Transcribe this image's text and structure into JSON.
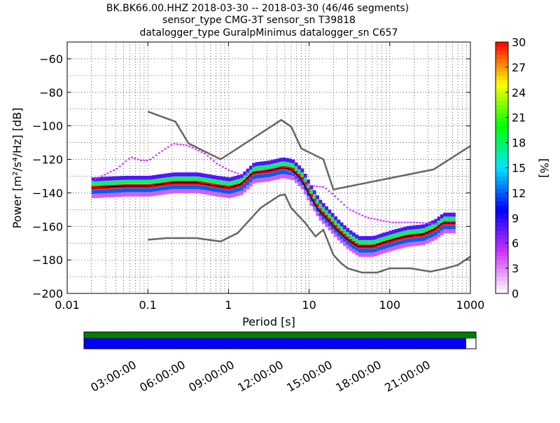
{
  "chart_data": {
    "type": "heatmap",
    "title_lines": [
      "BK.BK66.00.HHZ   2018-03-30 -- 2018-03-30  (46/46 segments)",
      "sensor_type CMG-3T sensor_sn T39818",
      "datalogger_type GuralpMinimus datalogger_sn C657"
    ],
    "xlabel": "Period [s]",
    "ylabel": "Power [m²/s⁴/Hz] [dB]",
    "x_scale": "log",
    "xlim": [
      0.01,
      1000
    ],
    "ylim": [
      -200,
      -50
    ],
    "x_ticks": [
      {
        "value": 0.01,
        "label": "0.01"
      },
      {
        "value": 0.1,
        "label": "0.1"
      },
      {
        "value": 1,
        "label": "1"
      },
      {
        "value": 10,
        "label": "10"
      },
      {
        "value": 100,
        "label": "100"
      },
      {
        "value": 1000,
        "label": "1000"
      }
    ],
    "y_ticks": [
      {
        "value": -200,
        "label": "−200"
      },
      {
        "value": -180,
        "label": "−180"
      },
      {
        "value": -160,
        "label": "−160"
      },
      {
        "value": -140,
        "label": "−140"
      },
      {
        "value": -120,
        "label": "−120"
      },
      {
        "value": -100,
        "label": "−100"
      },
      {
        "value": -80,
        "label": "−80"
      },
      {
        "value": -60,
        "label": "−60"
      }
    ],
    "grid": "dotted",
    "colorbar": {
      "label": "[%]",
      "range": [
        0,
        30
      ],
      "ticks": [
        {
          "value": 0,
          "label": "0"
        },
        {
          "value": 3,
          "label": "3"
        },
        {
          "value": 6,
          "label": "6"
        },
        {
          "value": 9,
          "label": "9"
        },
        {
          "value": 12,
          "label": "12"
        },
        {
          "value": 15,
          "label": "15"
        },
        {
          "value": 18,
          "label": "18"
        },
        {
          "value": 21,
          "label": "21"
        },
        {
          "value": 24,
          "label": "24"
        },
        {
          "value": 27,
          "label": "27"
        },
        {
          "value": 30,
          "label": "30"
        }
      ],
      "colormap": [
        "#ffffff",
        "#cc33ff",
        "#0000ff",
        "#00e5ff",
        "#00ff00",
        "#ffff00",
        "#ff0000"
      ]
    },
    "noise_models": [
      {
        "name": "high",
        "color": "#666666",
        "points": [
          [
            0.1,
            -91.5
          ],
          [
            0.22,
            -97.5
          ],
          [
            0.32,
            -110.5
          ],
          [
            0.8,
            -120
          ],
          [
            4.5,
            -96.5
          ],
          [
            6,
            -100.5
          ],
          [
            8,
            -113.5
          ],
          [
            15,
            -120
          ],
          [
            20,
            -138
          ],
          [
            350,
            -126
          ],
          [
            1000,
            -112
          ]
        ]
      },
      {
        "name": "low",
        "color": "#666666",
        "points": [
          [
            0.1,
            -168
          ],
          [
            0.17,
            -167
          ],
          [
            0.4,
            -167
          ],
          [
            0.8,
            -169
          ],
          [
            1.3,
            -164
          ],
          [
            2.5,
            -149
          ],
          [
            4.3,
            -141.5
          ],
          [
            5,
            -141
          ],
          [
            6,
            -149
          ],
          [
            9,
            -158
          ],
          [
            12,
            -166
          ],
          [
            15,
            -162
          ],
          [
            20,
            -177
          ],
          [
            25,
            -182
          ],
          [
            30,
            -185
          ],
          [
            45,
            -187.5
          ],
          [
            70,
            -187.5
          ],
          [
            100,
            -185
          ],
          [
            180,
            -185
          ],
          [
            320,
            -187
          ],
          [
            500,
            -185
          ],
          [
            700,
            -183
          ],
          [
            1000,
            -178
          ]
        ]
      }
    ],
    "mode_curve": {
      "color": "#000000",
      "points": [
        [
          0.02,
          -137
        ],
        [
          0.05,
          -136
        ],
        [
          0.1,
          -136
        ],
        [
          0.2,
          -134
        ],
        [
          0.4,
          -134
        ],
        [
          0.7,
          -136
        ],
        [
          1,
          -137
        ],
        [
          1.4,
          -135
        ],
        [
          2,
          -128
        ],
        [
          3,
          -127
        ],
        [
          4.5,
          -125
        ],
        [
          6,
          -126
        ],
        [
          8,
          -132
        ],
        [
          10,
          -141
        ],
        [
          13,
          -150
        ],
        [
          17,
          -156
        ],
        [
          22,
          -162
        ],
        [
          30,
          -168
        ],
        [
          40,
          -172
        ],
        [
          60,
          -172
        ],
        [
          80,
          -170
        ],
        [
          110,
          -168
        ],
        [
          160,
          -166
        ],
        [
          250,
          -165
        ],
        [
          350,
          -162
        ],
        [
          450,
          -158
        ],
        [
          650,
          -158
        ]
      ]
    },
    "secondary_band": {
      "color": "#cc33ff",
      "points": [
        [
          0.02,
          -133
        ],
        [
          0.04,
          -126
        ],
        [
          0.06,
          -119
        ],
        [
          0.08,
          -121
        ],
        [
          0.1,
          -121
        ],
        [
          0.15,
          -115
        ],
        [
          0.2,
          -111
        ],
        [
          0.3,
          -112
        ],
        [
          0.5,
          -117
        ],
        [
          0.7,
          -123
        ],
        [
          1,
          -127
        ],
        [
          1.5,
          -130
        ],
        [
          2.5,
          -127
        ],
        [
          4.5,
          -125
        ],
        [
          7,
          -131
        ],
        [
          10,
          -136
        ],
        [
          15,
          -137
        ],
        [
          20,
          -142
        ],
        [
          30,
          -150
        ],
        [
          50,
          -155
        ],
        [
          100,
          -158
        ],
        [
          200,
          -158
        ],
        [
          400,
          -159
        ],
        [
          650,
          -157
        ]
      ]
    },
    "density_bands": [
      {
        "level": 30,
        "offset": 0
      },
      {
        "level": 18,
        "offset": 2.5
      },
      {
        "level": 12,
        "offset": -2.5
      },
      {
        "level": 8,
        "offset": 5
      },
      {
        "level": 4,
        "offset": -5
      }
    ],
    "data_coverage": {
      "time_ticks": [
        "03:00:00",
        "06:00:00",
        "09:00:00",
        "12:00:00",
        "15:00:00",
        "18:00:00",
        "21:00:00"
      ],
      "time_range_hours": [
        0,
        24
      ],
      "tick_hours": [
        3,
        6,
        9,
        12,
        15,
        18,
        21
      ],
      "coverage_fraction": 0.975,
      "segments_bar_color": "#007f00",
      "data_bar_color": "#0000ff"
    }
  }
}
